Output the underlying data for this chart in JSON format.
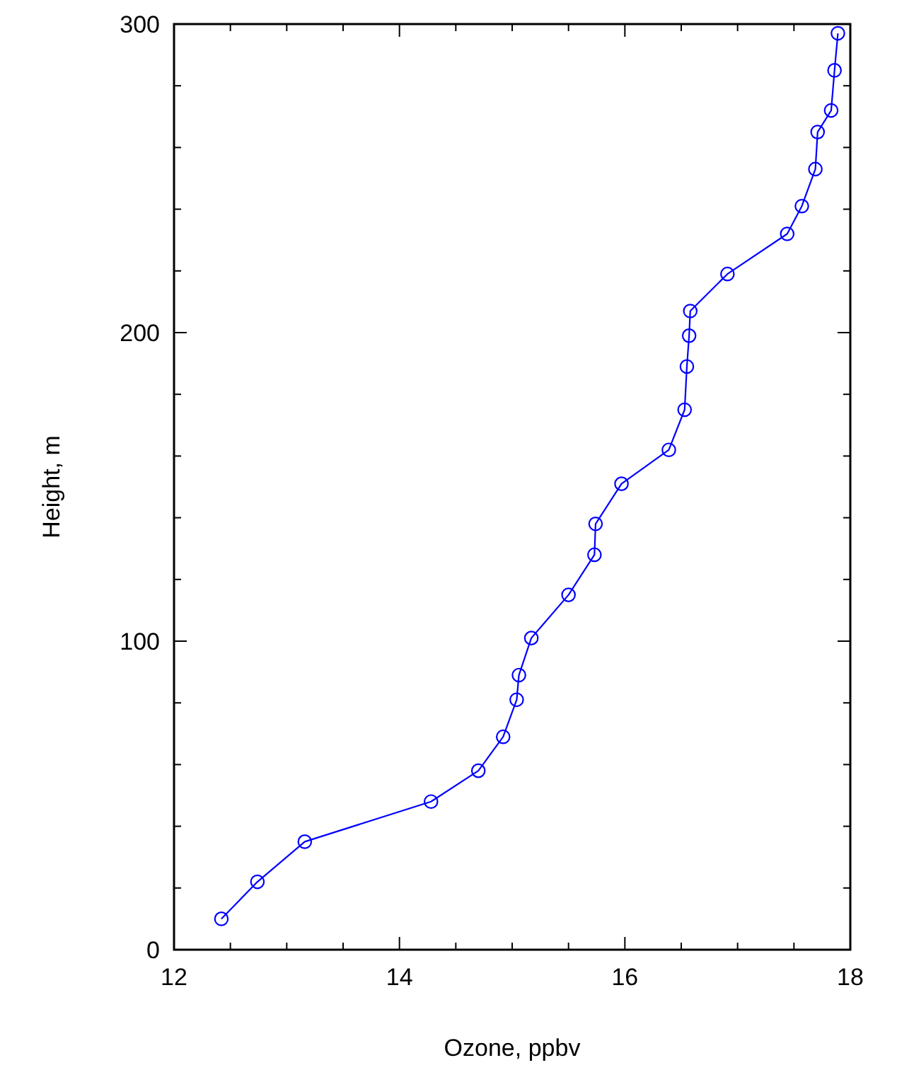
{
  "chart_data": {
    "type": "line",
    "xlabel": "Ozone, ppbv",
    "ylabel": "Height, m",
    "series": [
      {
        "color": "#0000ff",
        "x": [
          12.42,
          12.74,
          13.16,
          14.28,
          14.7,
          14.92,
          15.04,
          15.06,
          15.17,
          15.5,
          15.73,
          15.74,
          15.97,
          16.39,
          16.53,
          16.55,
          16.57,
          16.58,
          16.91,
          17.44,
          17.57,
          17.69,
          17.71,
          17.83,
          17.86,
          17.89
        ],
        "values": [
          10,
          22,
          35,
          48,
          58,
          69,
          81,
          89,
          101,
          115,
          128,
          138,
          151,
          162,
          175,
          189,
          199,
          207,
          219,
          232,
          241,
          253,
          265,
          272,
          285,
          297
        ]
      }
    ],
    "xlim": [
      12,
      18
    ],
    "ylim": [
      0,
      300
    ],
    "xticks": [
      12,
      {
        "value": 12.5,
        "label": null
      },
      {
        "value": 13,
        "label": null
      },
      {
        "value": 13.5,
        "label": null
      },
      14,
      {
        "value": 14.5,
        "label": null
      },
      {
        "value": 15,
        "label": null
      },
      {
        "value": 15.5,
        "label": null
      },
      16,
      {
        "value": 16.5,
        "label": null
      },
      {
        "value": 17,
        "label": null
      },
      {
        "value": 17.5,
        "label": null
      },
      18
    ],
    "yticks": [
      0,
      {
        "value": 20,
        "label": null
      },
      {
        "value": 40,
        "label": null
      },
      {
        "value": 60,
        "label": null
      },
      {
        "value": 80,
        "label": null
      },
      100,
      {
        "value": 120,
        "label": null
      },
      {
        "value": 140,
        "label": null
      },
      {
        "value": 160,
        "label": null
      },
      {
        "value": 180,
        "label": null
      },
      200,
      {
        "value": 220,
        "label": null
      },
      {
        "value": 240,
        "label": null
      },
      {
        "value": 260,
        "label": null
      },
      {
        "value": 280,
        "label": null
      },
      300
    ],
    "marker": "circle",
    "line_style": "solid"
  }
}
